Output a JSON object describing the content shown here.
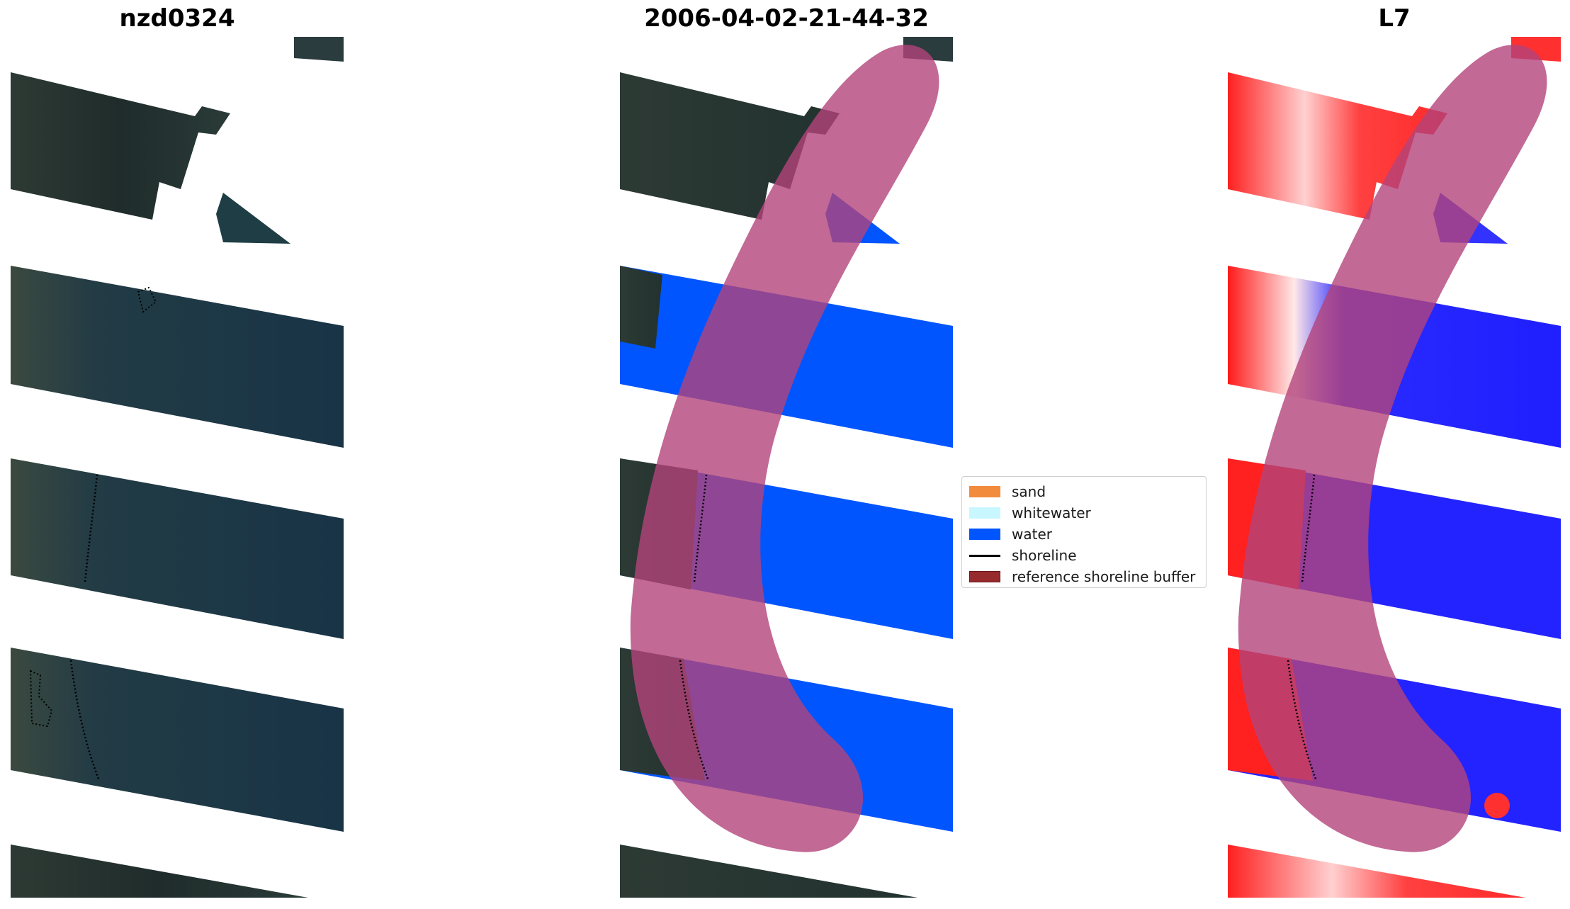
{
  "panels": [
    {
      "title": "nzd0324"
    },
    {
      "title": "2006-04-02-21-44-32"
    },
    {
      "title": "L7"
    }
  ],
  "legend": {
    "items": [
      {
        "label": "sand",
        "color": "#f28b3c",
        "type": "patch"
      },
      {
        "label": "whitewater",
        "color": "#c8f7ff",
        "type": "patch"
      },
      {
        "label": "water",
        "color": "#0055ff",
        "type": "patch"
      },
      {
        "label": "shoreline",
        "color": "#000000",
        "type": "line"
      },
      {
        "label": "reference shoreline buffer",
        "color": "#962a2d",
        "type": "patch"
      }
    ]
  },
  "colors": {
    "buffer": "#b3437a",
    "land_rgb": "#2a3a33",
    "sea_rgb": "#1c3a4a",
    "water_class": "#0055ff",
    "index_land": "#ff1a1a",
    "index_water": "#2020ff"
  }
}
